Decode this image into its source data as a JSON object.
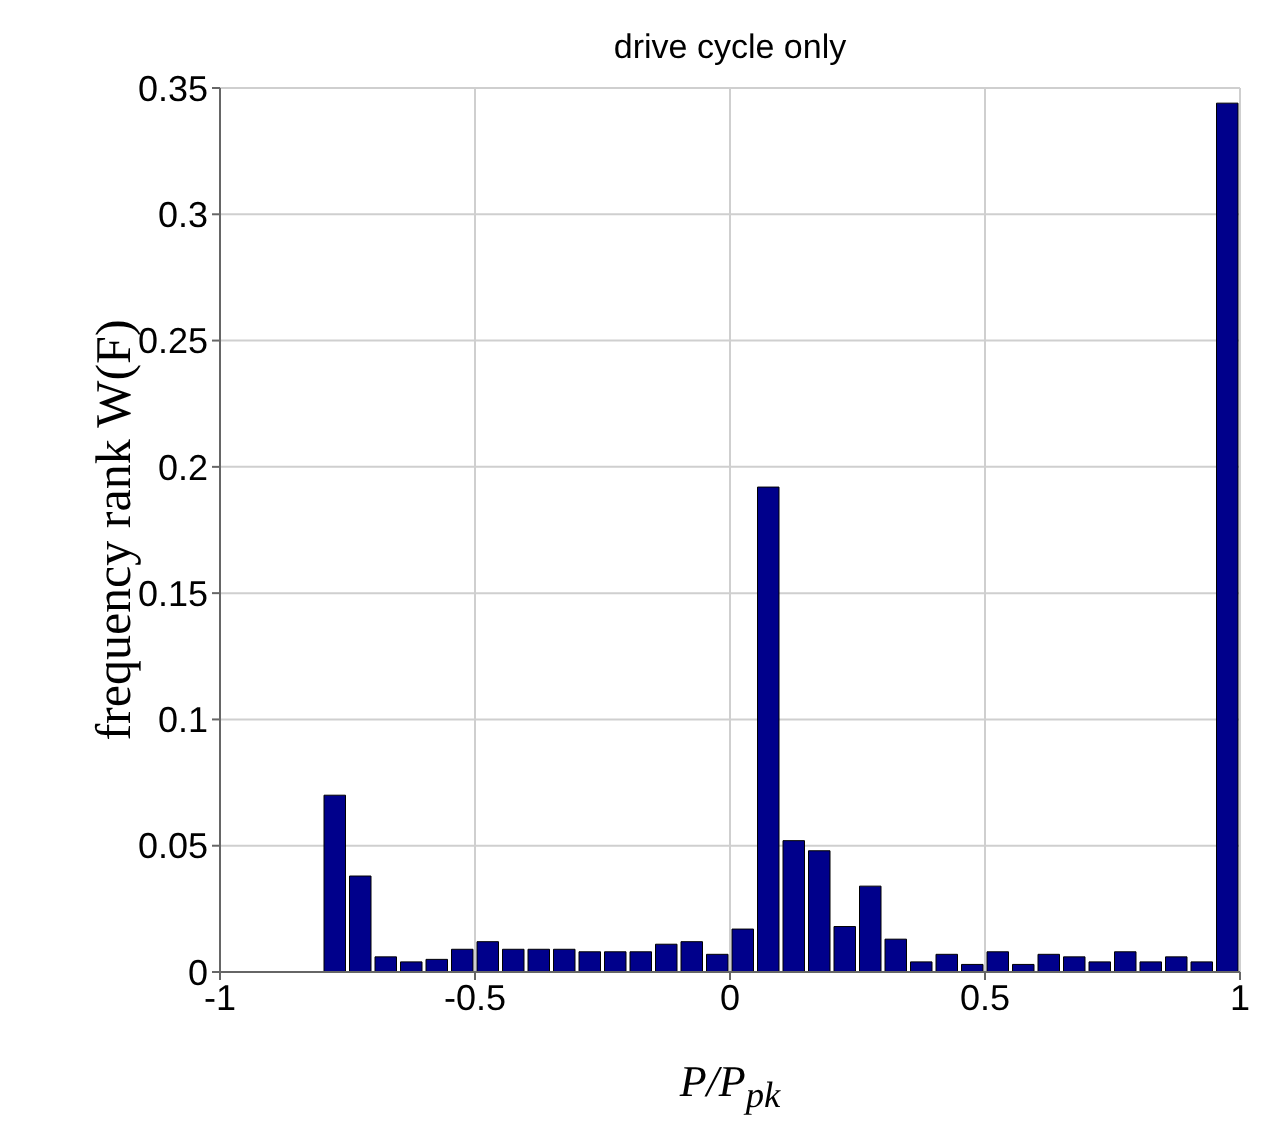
{
  "chart_data": {
    "type": "histogram",
    "title": "drive cycle only",
    "xlabel": "P/P$_{pk}$",
    "ylabel": "frequency rank W(F)",
    "bins": [
      -0.8,
      -0.75,
      -0.7,
      -0.65,
      -0.6,
      -0.55,
      -0.5,
      -0.45,
      -0.4,
      -0.35,
      -0.3,
      -0.25,
      -0.2,
      -0.15,
      -0.1,
      -0.05,
      0,
      0.05,
      0.1,
      0.15,
      0.2,
      0.25,
      0.3,
      0.35,
      0.4,
      0.45,
      0.5,
      0.55,
      0.6,
      0.65,
      0.7,
      0.75,
      0.8,
      0.85,
      0.9,
      0.95,
      1.0
    ],
    "values": [
      0.07,
      0.038,
      0.006,
      0.004,
      0.005,
      0.009,
      0.012,
      0.009,
      0.009,
      0.009,
      0.008,
      0.008,
      0.008,
      0.011,
      0.012,
      0.007,
      0.017,
      0.192,
      0.052,
      0.048,
      0.018,
      0.034,
      0.013,
      0.004,
      0.007,
      0.003,
      0.008,
      0.003,
      0.007,
      0.006,
      0.004,
      0.008,
      0.004,
      0.006,
      0.004,
      0.344
    ],
    "color": "#00008b",
    "xlim": [
      -1,
      1
    ],
    "xticks": [
      -1,
      -0.5,
      0,
      0.5,
      1
    ],
    "ylim": [
      0,
      0.35
    ],
    "yticks": [
      0,
      0.05,
      0.1,
      0.15,
      0.2,
      0.25,
      0.3,
      0.35
    ],
    "grid": true
  }
}
